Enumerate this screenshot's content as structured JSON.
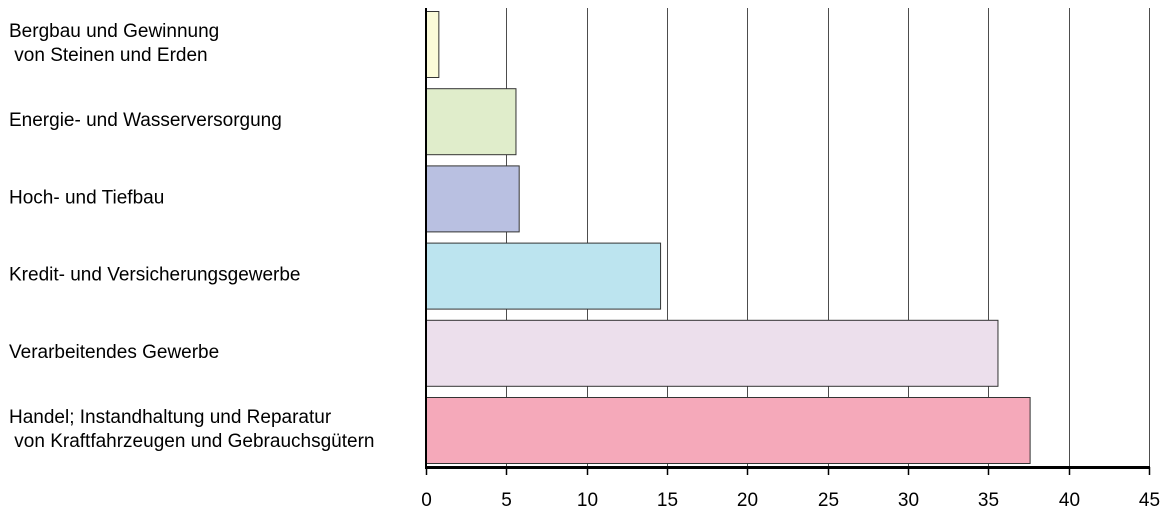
{
  "chart_data": {
    "type": "bar",
    "orientation": "horizontal",
    "categories": [
      [
        "Bergbau und Gewinnung",
        " von Steinen und Erden"
      ],
      [
        "Energie- und Wasserversorgung"
      ],
      [
        "Hoch- und Tiefbau"
      ],
      [
        "Kredit- und Versicherungsgewerbe"
      ],
      [
        "Verarbeitendes Gewerbe"
      ],
      [
        "Handel; Instandhaltung und Reparatur",
        " von Kraftfahrzeugen und Gebrauchsgütern"
      ]
    ],
    "values": [
      0.8,
      5.6,
      5.8,
      14.6,
      35.6,
      37.6
    ],
    "colors": [
      "#fbfbd9",
      "#e0edcb",
      "#b9c0e1",
      "#bce4ef",
      "#ecdfec",
      "#f5a9ba"
    ],
    "bar_edge_color": "#333333",
    "xlim": [
      0,
      45
    ],
    "xticks": [
      0,
      5,
      10,
      15,
      20,
      25,
      30,
      35,
      40,
      45
    ],
    "grid": true,
    "title": "",
    "xlabel": "",
    "ylabel": ""
  }
}
